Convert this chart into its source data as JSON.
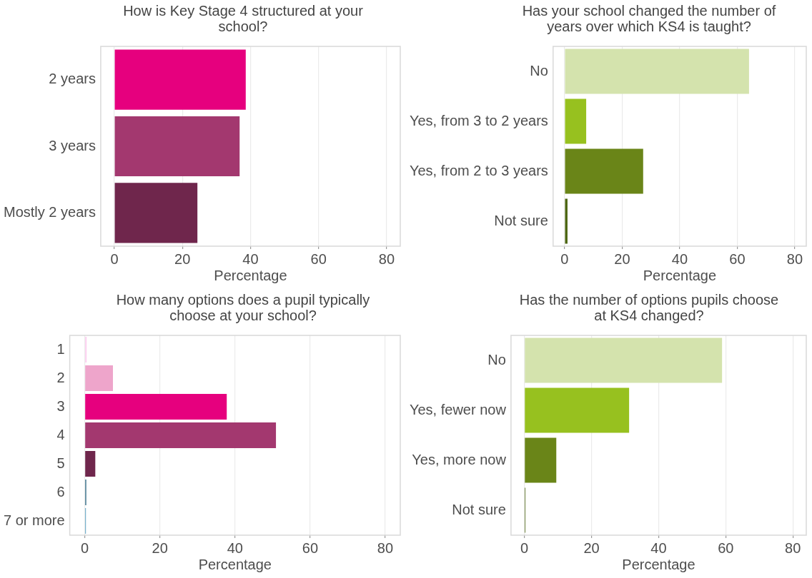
{
  "chart_data": [
    {
      "type": "bar",
      "orientation": "horizontal",
      "title": "How is Key Stage 4 structured at your school?",
      "xlabel": "Percentage",
      "categories": [
        "2 years",
        "3 years",
        "Mostly 2 years"
      ],
      "values": [
        38.6,
        36.8,
        24.4
      ],
      "colors": [
        "#e6007e",
        "#a3386f",
        "#6f264c"
      ],
      "xlim": [
        -4,
        84
      ],
      "xticks": [
        0,
        20,
        40,
        60,
        80
      ],
      "grid": "x",
      "legend": false
    },
    {
      "type": "bar",
      "orientation": "horizontal",
      "title": "Has your school changed the number of years over which KS4 is taught?",
      "xlabel": "Percentage",
      "categories": [
        "No",
        "Yes, from 3 to 2 years",
        "Yes, from 2 to 3 years",
        "Not sure"
      ],
      "values": [
        64.1,
        7.5,
        27.3,
        1.0
      ],
      "colors": [
        "#d4e3ad",
        "#97c11f",
        "#6a8518",
        "#4b6510"
      ],
      "xlim": [
        -4,
        84
      ],
      "xticks": [
        0,
        20,
        40,
        60,
        80
      ],
      "grid": "x",
      "legend": false
    },
    {
      "type": "bar",
      "orientation": "horizontal",
      "title": "How many options does a pupil typically choose at your school?",
      "xlabel": "Percentage",
      "categories": [
        "1",
        "2",
        "3",
        "4",
        "5",
        "6",
        "7 or more"
      ],
      "values": [
        0.5,
        7.5,
        37.8,
        50.9,
        2.8,
        0.4,
        0.3
      ],
      "colors": [
        "#fcd0ef",
        "#eea5cb",
        "#e6007e",
        "#a3386f",
        "#6f264c",
        "#41768f",
        "#5aa0c0"
      ],
      "xlim": [
        -4,
        84
      ],
      "xticks": [
        0,
        20,
        40,
        60,
        80
      ],
      "grid": "x",
      "legend": false
    },
    {
      "type": "bar",
      "orientation": "horizontal",
      "title": "Has the number of options pupils choose at KS4 changed?",
      "xlabel": "Percentage",
      "categories": [
        "No",
        "Yes, fewer now",
        "Yes, more now",
        "Not sure"
      ],
      "values": [
        58.9,
        31.2,
        9.5,
        0.3
      ],
      "colors": [
        "#d4e3ad",
        "#97c11f",
        "#6a8518",
        "#4b6510"
      ],
      "xlim": [
        -4,
        84
      ],
      "xticks": [
        0,
        20,
        40,
        60,
        80
      ],
      "grid": "x",
      "legend": false
    }
  ]
}
